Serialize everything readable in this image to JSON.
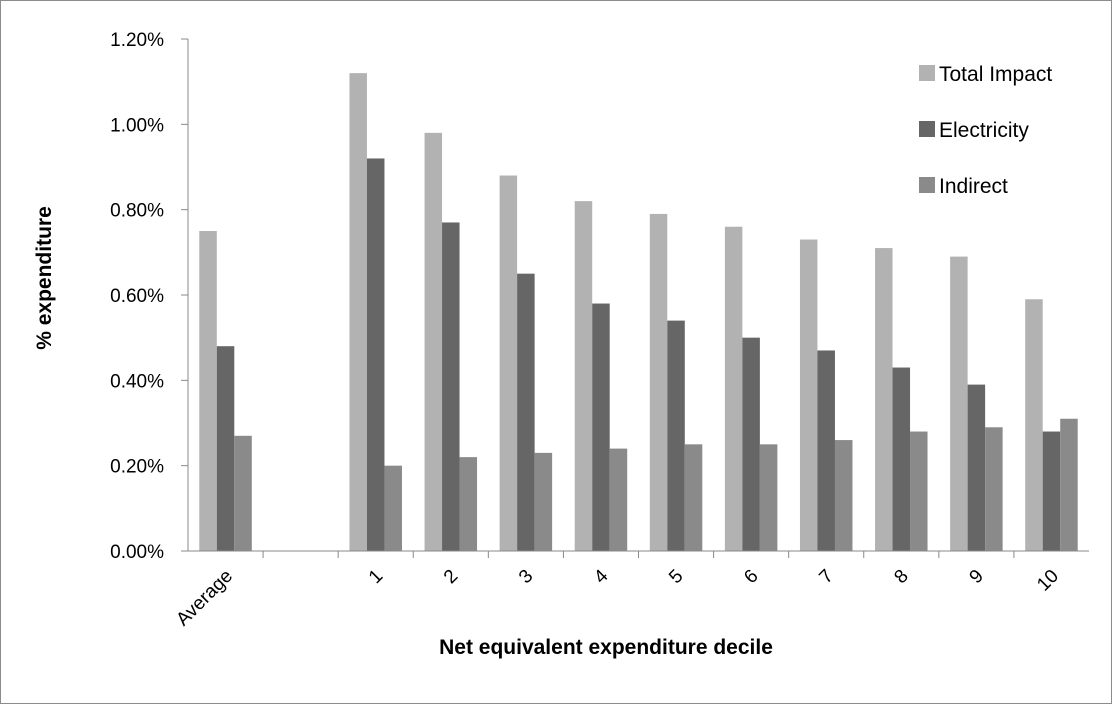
{
  "chart_data": {
    "type": "bar",
    "categories": [
      "Average",
      "",
      "1",
      "2",
      "3",
      "4",
      "5",
      "6",
      "7",
      "8",
      "9",
      "10"
    ],
    "series": [
      {
        "name": "Total Impact",
        "color": "#b2b2b2",
        "values": [
          0.75,
          null,
          1.12,
          0.98,
          0.88,
          0.82,
          0.79,
          0.76,
          0.73,
          0.71,
          0.69,
          0.59
        ]
      },
      {
        "name": "Electricity",
        "color": "#666666",
        "values": [
          0.48,
          null,
          0.92,
          0.77,
          0.65,
          0.58,
          0.54,
          0.5,
          0.47,
          0.43,
          0.39,
          0.28
        ]
      },
      {
        "name": "Indirect",
        "color": "#8a8a8a",
        "values": [
          0.27,
          null,
          0.2,
          0.22,
          0.23,
          0.24,
          0.25,
          0.25,
          0.26,
          0.28,
          0.29,
          0.31
        ]
      }
    ],
    "yticks": [
      "0.00%",
      "0.20%",
      "0.40%",
      "0.60%",
      "0.80%",
      "1.00%",
      "1.20%"
    ],
    "ylim": [
      0,
      1.2
    ],
    "xlabel": "Net equivalent expenditure decile",
    "ylabel": "% expenditure",
    "grid": false,
    "legend_position": "top-right"
  }
}
